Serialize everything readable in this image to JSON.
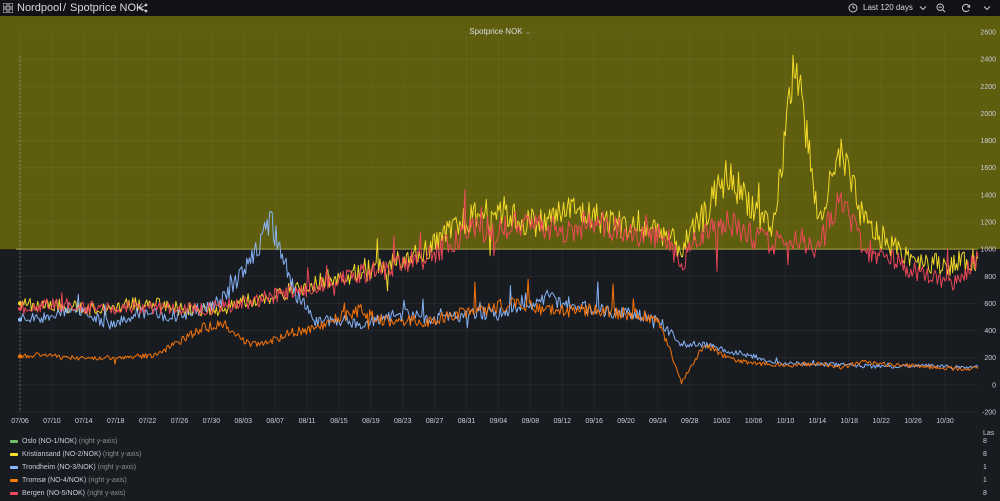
{
  "breadcrumb": {
    "folder": "Nordpool",
    "separator": "/",
    "dashboard": "Spotprice NOK"
  },
  "time_picker": {
    "label": "Last 120 days"
  },
  "panel": {
    "title": "Spotprice NOK"
  },
  "legend": {
    "header": "Las",
    "items": [
      {
        "name": "Oslo (NO-1/NOK)",
        "axis": "(right y-axis)",
        "color": "#73bf69",
        "last": "8"
      },
      {
        "name": "Kristiansand (NO-2/NOK)",
        "axis": "(right y-axis)",
        "color": "#fade2a",
        "last": "8"
      },
      {
        "name": "Trondheim (NO-3/NOK)",
        "axis": "(right y-axis)",
        "color": "#8ab8ff",
        "last": "1"
      },
      {
        "name": "Tromsø (NO-4/NOK)",
        "axis": "(right y-axis)",
        "color": "#ff780a",
        "last": "1"
      },
      {
        "name": "Bergen (NO-5/NOK)",
        "axis": "(right y-axis)",
        "color": "#f2495c",
        "last": "8"
      }
    ]
  },
  "chart_data": {
    "type": "line",
    "threshold": {
      "value": 1000,
      "color": "#5e5e0e"
    },
    "y_ticks": [
      -200,
      0,
      200,
      400,
      600,
      800,
      1000,
      1200,
      1400,
      1600,
      1800,
      2000,
      2200,
      2400,
      2600
    ],
    "ylim": [
      -200,
      2600
    ],
    "x_ticks": [
      "07/06",
      "07/10",
      "07/14",
      "07/18",
      "07/22",
      "07/26",
      "07/30",
      "08/03",
      "08/07",
      "08/11",
      "08/15",
      "08/19",
      "08/23",
      "08/27",
      "08/31",
      "09/04",
      "09/08",
      "09/12",
      "09/16",
      "09/20",
      "09/24",
      "09/28",
      "10/02",
      "10/06",
      "10/10",
      "10/14",
      "10/18",
      "10/22",
      "10/26",
      "10/30"
    ],
    "series": [
      {
        "name": "Oslo (NO-1/NOK)",
        "color": "#73bf69",
        "values": []
      },
      {
        "name": "Kristiansand (NO-2/NOK)",
        "color": "#fade2a",
        "values": [
          600,
          590,
          580,
          560,
          560,
          600,
          590,
          560,
          550,
          560,
          620,
          650,
          700,
          760,
          800,
          830,
          880,
          950,
          1000,
          1150,
          1250,
          1300,
          1200,
          1200,
          1300,
          1250,
          1200,
          1150,
          1150,
          1000,
          1250,
          1550,
          1350,
          1100,
          2450,
          1200,
          1700,
          1200,
          1050,
          950,
          900,
          880,
          930
        ]
      },
      {
        "name": "Trondheim (NO-3/NOK)",
        "color": "#8ab8ff",
        "values": [
          480,
          500,
          560,
          520,
          440,
          520,
          520,
          510,
          560,
          640,
          900,
          1200,
          700,
          460,
          480,
          450,
          500,
          520,
          480,
          500,
          520,
          540,
          560,
          650,
          600,
          560,
          540,
          520,
          480,
          300,
          300,
          250,
          220,
          160,
          160,
          150,
          150,
          140,
          130,
          140,
          140,
          130,
          130
        ]
      },
      {
        "name": "Tromsø (NO-4/NOK)",
        "color": "#ff780a",
        "values": [
          210,
          220,
          200,
          200,
          200,
          210,
          220,
          320,
          420,
          450,
          300,
          320,
          390,
          420,
          500,
          550,
          470,
          480,
          460,
          520,
          540,
          580,
          600,
          560,
          540,
          550,
          530,
          520,
          480,
          20,
          300,
          200,
          160,
          150,
          140,
          160,
          130,
          170,
          150,
          140,
          130,
          120,
          120
        ]
      },
      {
        "name": "Bergen (NO-5/NOK)",
        "color": "#f2495c",
        "values": [
          560,
          580,
          590,
          570,
          560,
          580,
          560,
          560,
          560,
          580,
          600,
          650,
          700,
          720,
          760,
          820,
          850,
          900,
          950,
          1050,
          1150,
          1150,
          1200,
          1150,
          1150,
          1200,
          1150,
          1100,
          1100,
          900,
          1150,
          1200,
          1100,
          1050,
          1100,
          1000,
          1400,
          1000,
          950,
          850,
          800,
          750,
          950
        ]
      }
    ]
  }
}
